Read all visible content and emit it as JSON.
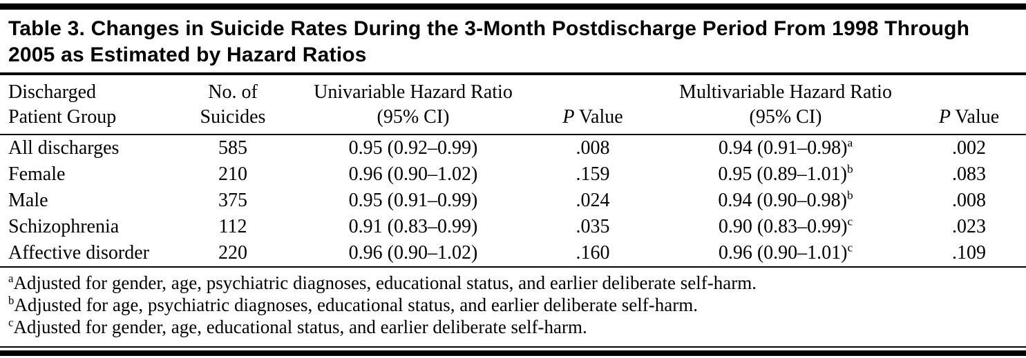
{
  "table": {
    "title": "Table 3. Changes in Suicide Rates During the 3-Month Postdischarge Period From 1998 Through 2005 as Estimated by Hazard Ratios",
    "headers": {
      "group_l1": "Discharged",
      "group_l2": "Patient Group",
      "n_l1": "No. of",
      "n_l2": "Suicides",
      "uni_l1": "Univariable Hazard Ratio",
      "uni_l2": "(95% CI)",
      "p1_italic": "P",
      "p1_rest": " Value",
      "multi_l1": "Multivariable Hazard Ratio",
      "multi_l2": "(95% CI)",
      "p2_italic": "P",
      "p2_rest": " Value"
    },
    "rows": [
      {
        "group": "All discharges",
        "n": "585",
        "uni_hr": "0.95 (0.92–0.99)",
        "uni_p": ".008",
        "multi_hr": "0.94 (0.91–0.98)",
        "multi_sup": "a",
        "multi_p": ".002"
      },
      {
        "group": "Female",
        "n": "210",
        "uni_hr": "0.96 (0.90–1.02)",
        "uni_p": ".159",
        "multi_hr": "0.95 (0.89–1.01)",
        "multi_sup": "b",
        "multi_p": ".083"
      },
      {
        "group": "Male",
        "n": "375",
        "uni_hr": "0.95 (0.91–0.99)",
        "uni_p": ".024",
        "multi_hr": "0.94 (0.90–0.98)",
        "multi_sup": "b",
        "multi_p": ".008"
      },
      {
        "group": "Schizophrenia",
        "n": "112",
        "uni_hr": "0.91 (0.83–0.99)",
        "uni_p": ".035",
        "multi_hr": "0.90 (0.83–0.99)",
        "multi_sup": "c",
        "multi_p": ".023"
      },
      {
        "group": "Affective disorder",
        "n": "220",
        "uni_hr": "0.96 (0.90–1.02)",
        "uni_p": ".160",
        "multi_hr": "0.96 (0.90–1.01)",
        "multi_sup": "c",
        "multi_p": ".109"
      }
    ],
    "footnotes": [
      {
        "marker": "a",
        "text": "Adjusted for gender, age, psychiatric diagnoses, educational status, and earlier deliberate self-harm."
      },
      {
        "marker": "b",
        "text": "Adjusted for age, psychiatric diagnoses, educational status, and earlier deliberate self-harm."
      },
      {
        "marker": "c",
        "text": "Adjusted for gender, age, educational status, and earlier deliberate self-harm."
      }
    ],
    "colors": {
      "rule": "#000000",
      "background": "#ffffff",
      "text": "#000000"
    }
  }
}
